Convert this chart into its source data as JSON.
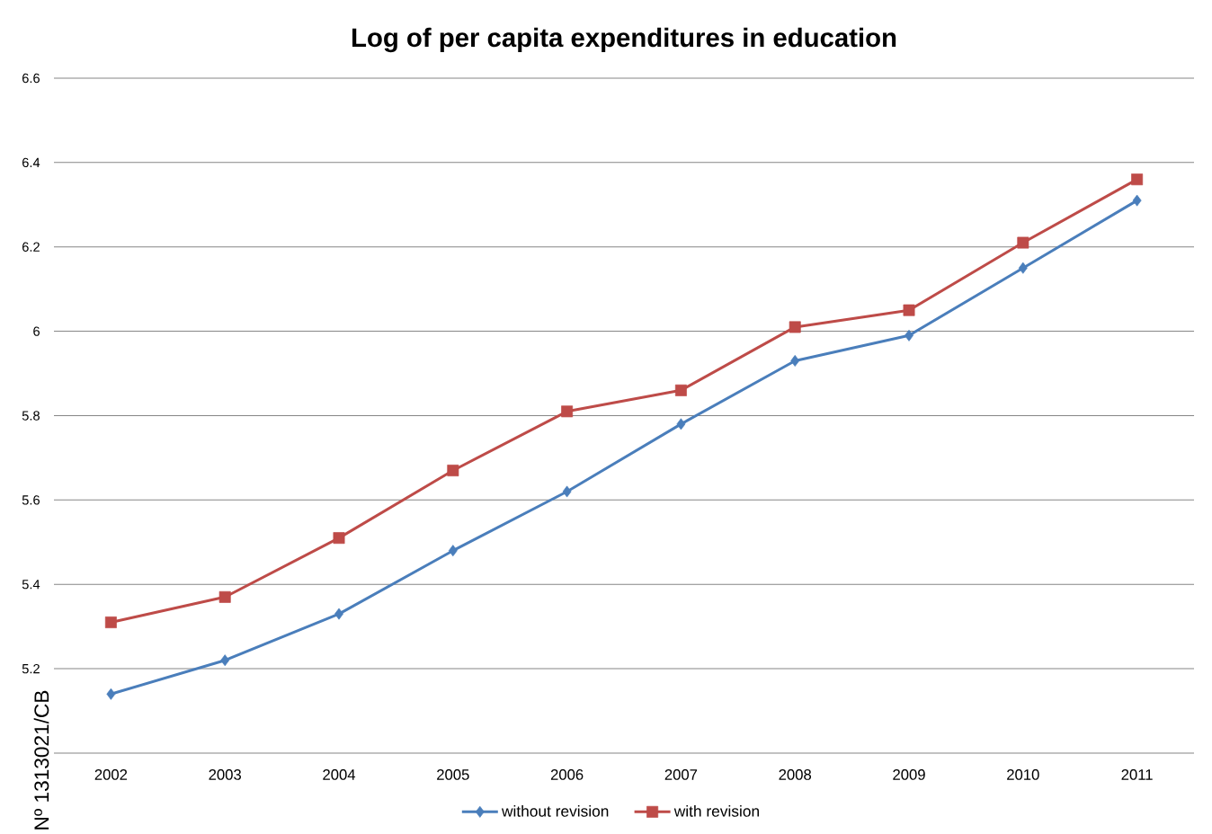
{
  "chart_data": {
    "type": "line",
    "title": "Log of per capita expenditures in education",
    "categories": [
      "2002",
      "2003",
      "2004",
      "2005",
      "2006",
      "2007",
      "2008",
      "2009",
      "2010",
      "2011"
    ],
    "series": [
      {
        "name": "without revision",
        "color": "#4a7ebb",
        "marker": "diamond",
        "values": [
          5.14,
          5.22,
          5.33,
          5.48,
          5.62,
          5.78,
          5.93,
          5.99,
          6.15,
          6.31
        ]
      },
      {
        "name": "with revision",
        "color": "#be4b48",
        "marker": "square",
        "values": [
          5.31,
          5.37,
          5.51,
          5.67,
          5.81,
          5.86,
          6.01,
          6.05,
          6.21,
          6.36
        ]
      }
    ],
    "ylim": [
      5,
      6.6
    ],
    "yticks": [
      5.2,
      5.4,
      5.6,
      5.8,
      6,
      6.2,
      6.4,
      6.6
    ],
    "grid": "y",
    "legend": "bottom",
    "line_style": "solid",
    "annotations": [
      "Nº 1313021/CB"
    ]
  }
}
